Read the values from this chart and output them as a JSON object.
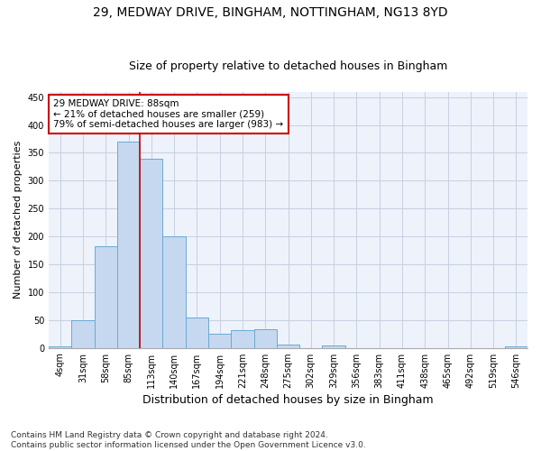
{
  "title1": "29, MEDWAY DRIVE, BINGHAM, NOTTINGHAM, NG13 8YD",
  "title2": "Size of property relative to detached houses in Bingham",
  "xlabel": "Distribution of detached houses by size in Bingham",
  "ylabel": "Number of detached properties",
  "bin_labels": [
    "4sqm",
    "31sqm",
    "58sqm",
    "85sqm",
    "113sqm",
    "140sqm",
    "167sqm",
    "194sqm",
    "221sqm",
    "248sqm",
    "275sqm",
    "302sqm",
    "329sqm",
    "356sqm",
    "383sqm",
    "411sqm",
    "438sqm",
    "465sqm",
    "492sqm",
    "519sqm",
    "546sqm"
  ],
  "bar_heights": [
    3,
    50,
    182,
    370,
    340,
    200,
    55,
    26,
    32,
    33,
    6,
    0,
    5,
    0,
    0,
    0,
    0,
    0,
    0,
    0,
    3
  ],
  "bar_color": "#c5d8f0",
  "bar_edge_color": "#6aaad4",
  "grid_color": "#c8cfe0",
  "background_color": "#edf2fb",
  "red_line_x": 3.5,
  "annotation_text": "29 MEDWAY DRIVE: 88sqm\n← 21% of detached houses are smaller (259)\n79% of semi-detached houses are larger (983) →",
  "annotation_box_color": "#ffffff",
  "annotation_box_edge": "#cc0000",
  "footnote": "Contains HM Land Registry data © Crown copyright and database right 2024.\nContains public sector information licensed under the Open Government Licence v3.0.",
  "ylim": [
    0,
    460
  ],
  "yticks": [
    0,
    50,
    100,
    150,
    200,
    250,
    300,
    350,
    400,
    450
  ],
  "title1_fontsize": 10,
  "title2_fontsize": 9,
  "xlabel_fontsize": 9,
  "ylabel_fontsize": 8,
  "tick_fontsize": 7,
  "annotation_fontsize": 7.5,
  "footnote_fontsize": 6.5
}
